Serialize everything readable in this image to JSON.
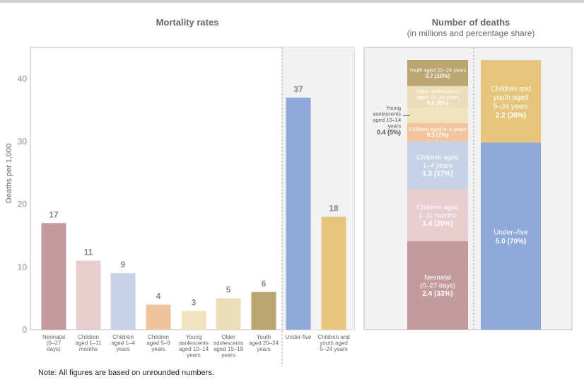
{
  "chart_data": [
    {
      "type": "bar",
      "title": "Mortality rates",
      "ylabel": "Deaths per 1,000",
      "ylim": [
        0,
        45
      ],
      "yticks": [
        "0",
        "10",
        "20",
        "30",
        "40"
      ],
      "ytick_values": [
        0,
        10,
        20,
        30,
        40
      ],
      "grid": false,
      "categories": [
        [
          "Neonatal",
          "(0–27",
          "days)"
        ],
        [
          "Children",
          "aged 1–11",
          "months"
        ],
        [
          "Children",
          "aged 1–4",
          "years"
        ],
        [
          "Children",
          "aged 5–9",
          "years"
        ],
        [
          "Young",
          "asolescents",
          "aged 10–14",
          "years"
        ],
        [
          "Older",
          "adolescents",
          "aged 15–19",
          "years"
        ],
        [
          "Youth",
          "aged 20–24",
          "years"
        ],
        [
          "Under-five"
        ],
        [
          "Children and",
          "youth aged",
          "5–24 years"
        ]
      ],
      "values": [
        17,
        11,
        9,
        4,
        3,
        5,
        6,
        37,
        18
      ],
      "value_labels": [
        "17",
        "11",
        "9",
        "4",
        "3",
        "5",
        "6",
        "37",
        "18"
      ],
      "colors": [
        "#c49a9f",
        "#e8cdcf",
        "#c6d2e6",
        "#f2c49e",
        "#f2e3c0",
        "#ecdcb8",
        "#b8a570",
        "#8fa9d8",
        "#e5c57a"
      ]
    },
    {
      "type": "bar",
      "stacked": true,
      "title": "Number of deaths",
      "subtitle": "(in millions and percentage share)",
      "unit": "millions",
      "stack_left": [
        {
          "label": [
            "Neonatal",
            "(0–27 days)"
          ],
          "value_text": "2.4 (33%)",
          "value": 2.4,
          "share": 33,
          "color": "#c49a9f"
        },
        {
          "label": [
            "Children aged",
            "1–11 months"
          ],
          "value_text": "1.4 (20%)",
          "value": 1.4,
          "share": 20,
          "color": "#e8cdcf"
        },
        {
          "label": [
            "Children aged",
            "1–4 years"
          ],
          "value_text": "1.3 (17%)",
          "value": 1.3,
          "share": 17,
          "color": "#c6d2e6"
        },
        {
          "label": [
            "Children aged 5–9 years"
          ],
          "value_text": "0.5 (7%)",
          "value": 0.5,
          "share": 7,
          "color": "#f2c49e"
        },
        {
          "label": [],
          "value_text": "",
          "value": 0.4,
          "share": 5,
          "color": "#f2e3c0"
        },
        {
          "label": [
            "Older adolescents",
            "aged 15–19 years"
          ],
          "value_text": "0.6 (8%)",
          "value": 0.6,
          "share": 8,
          "color": "#ecdcb8"
        },
        {
          "label": [
            "Youth aged 20–24 years"
          ],
          "value_text": "0.7 (10%)",
          "value": 0.7,
          "share": 10,
          "color": "#b8a570"
        }
      ],
      "callout": {
        "label": [
          "Young",
          "asolescents",
          "aged 10–14",
          "years"
        ],
        "value_text": "0.4 (5%)"
      },
      "stack_right": [
        {
          "label": [
            "Under–five"
          ],
          "value_text": "5.0 (70%)",
          "value": 5.0,
          "share": 70,
          "color": "#8fa9d8"
        },
        {
          "label": [
            "Children and",
            "youth aged",
            "5–24 years"
          ],
          "value_text": "2.2 (30%)",
          "value": 2.2,
          "share": 30,
          "color": "#e5c57a"
        }
      ]
    }
  ],
  "note": "Note: All figures are based on unrounded numbers."
}
